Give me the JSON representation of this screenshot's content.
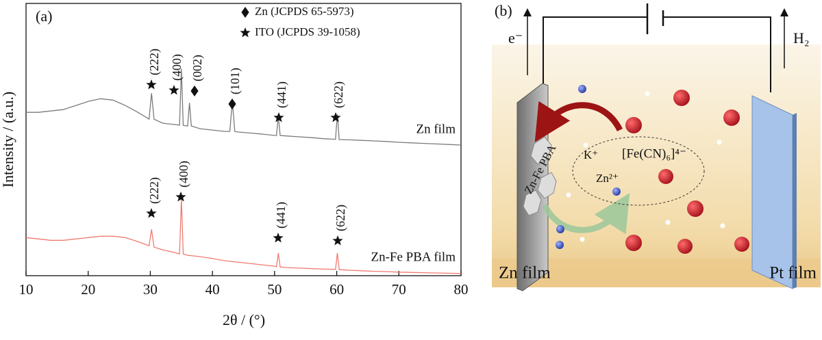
{
  "chart_data": {
    "type": "line",
    "panel_label": "(a)",
    "x_label": "2θ / (°)",
    "y_label": "Intensity / (a.u.)",
    "xlim": [
      10,
      80
    ],
    "xticks": [
      10,
      20,
      30,
      40,
      50,
      60,
      70,
      80
    ],
    "ylim": [
      0,
      100
    ],
    "legend": [
      {
        "marker": "diamond",
        "label": "Zn (JCPDS 65-5973)"
      },
      {
        "marker": "star",
        "label": "ITO (JCPDS 39-1058)"
      }
    ],
    "series": [
      {
        "name": "Zn film",
        "color": "#7a7a7a",
        "x": [
          10,
          12,
          14,
          16,
          18,
          20,
          22,
          24,
          26,
          28,
          29.8,
          30.2,
          30.6,
          32,
          34,
          34.7,
          35,
          35.3,
          36,
          36.3,
          36.6,
          38,
          40,
          42,
          42.8,
          43.2,
          43.6,
          44,
          46,
          48,
          50,
          50.3,
          50.6,
          50.9,
          52,
          54,
          56,
          58,
          59.8,
          60.1,
          60.4,
          62,
          64,
          66,
          68,
          70,
          72,
          74,
          76,
          78,
          80
        ],
        "values": [
          60,
          60,
          60.5,
          61,
          62.5,
          64,
          65,
          64.5,
          62.5,
          60,
          57.5,
          67,
          57.5,
          56,
          55.5,
          55.3,
          76,
          55.2,
          55,
          63.5,
          55,
          54,
          53.5,
          53,
          53,
          64,
          53,
          52.8,
          52.4,
          52,
          51.5,
          51.5,
          58.5,
          51.5,
          51.3,
          51,
          50.7,
          50.3,
          50.1,
          59.3,
          50,
          49.9,
          49.7,
          49.5,
          49.3,
          49,
          48.8,
          48.6,
          48.4,
          48.2,
          48
        ],
        "peaks": [
          {
            "marker": "star",
            "label": "(222)"
          },
          {
            "marker": "star",
            "label": "(400)"
          },
          {
            "marker": "diamond",
            "label": "(002)"
          },
          {
            "marker": "diamond",
            "label": "(101)"
          },
          {
            "marker": "star",
            "label": "(441)"
          },
          {
            "marker": "star",
            "label": "(622)"
          }
        ]
      },
      {
        "name": "Zn-Fe PBA film",
        "color": "#f07a70",
        "x": [
          10,
          12,
          14,
          16,
          18,
          20,
          22,
          24,
          26,
          28,
          29.8,
          30.2,
          30.6,
          32,
          34,
          34.7,
          35,
          35.3,
          36,
          38,
          40,
          42,
          44,
          46,
          48,
          50,
          50.3,
          50.6,
          50.9,
          52,
          54,
          56,
          58,
          59.8,
          60.1,
          60.4,
          62,
          64,
          66,
          68,
          70,
          72,
          74,
          76,
          78,
          80
        ],
        "values": [
          14,
          13.5,
          13,
          13,
          13.5,
          14,
          14.5,
          14.5,
          14,
          12.5,
          11,
          17,
          10.5,
          9.5,
          8.5,
          8,
          28.4,
          8,
          7.5,
          7,
          6.3,
          5.5,
          5,
          4.5,
          4,
          3.5,
          3.3,
          8.3,
          3.2,
          3,
          2.8,
          2.6,
          2.4,
          2.3,
          8.3,
          2.2,
          2,
          1.8,
          1.6,
          1.5,
          1.3,
          1.2,
          1.1,
          1,
          0.9,
          0.8
        ],
        "peaks": [
          {
            "marker": "star",
            "label": "(222)"
          },
          {
            "marker": "star",
            "label": "(400)"
          },
          {
            "marker": "star",
            "label": "(441)"
          },
          {
            "marker": "star",
            "label": "(622)"
          }
        ]
      }
    ]
  },
  "diagram": {
    "panel_label": "(b)",
    "electron": "e⁻",
    "gas": "H₂",
    "coating": "Zn-Fe PBA",
    "ions": {
      "k": "K⁺",
      "ferrocyanide": "[Fe(CN)₆]⁴⁻",
      "zn": "Zn²⁺"
    },
    "left_electrode": "Zn film",
    "right_electrode": "Pt film"
  }
}
